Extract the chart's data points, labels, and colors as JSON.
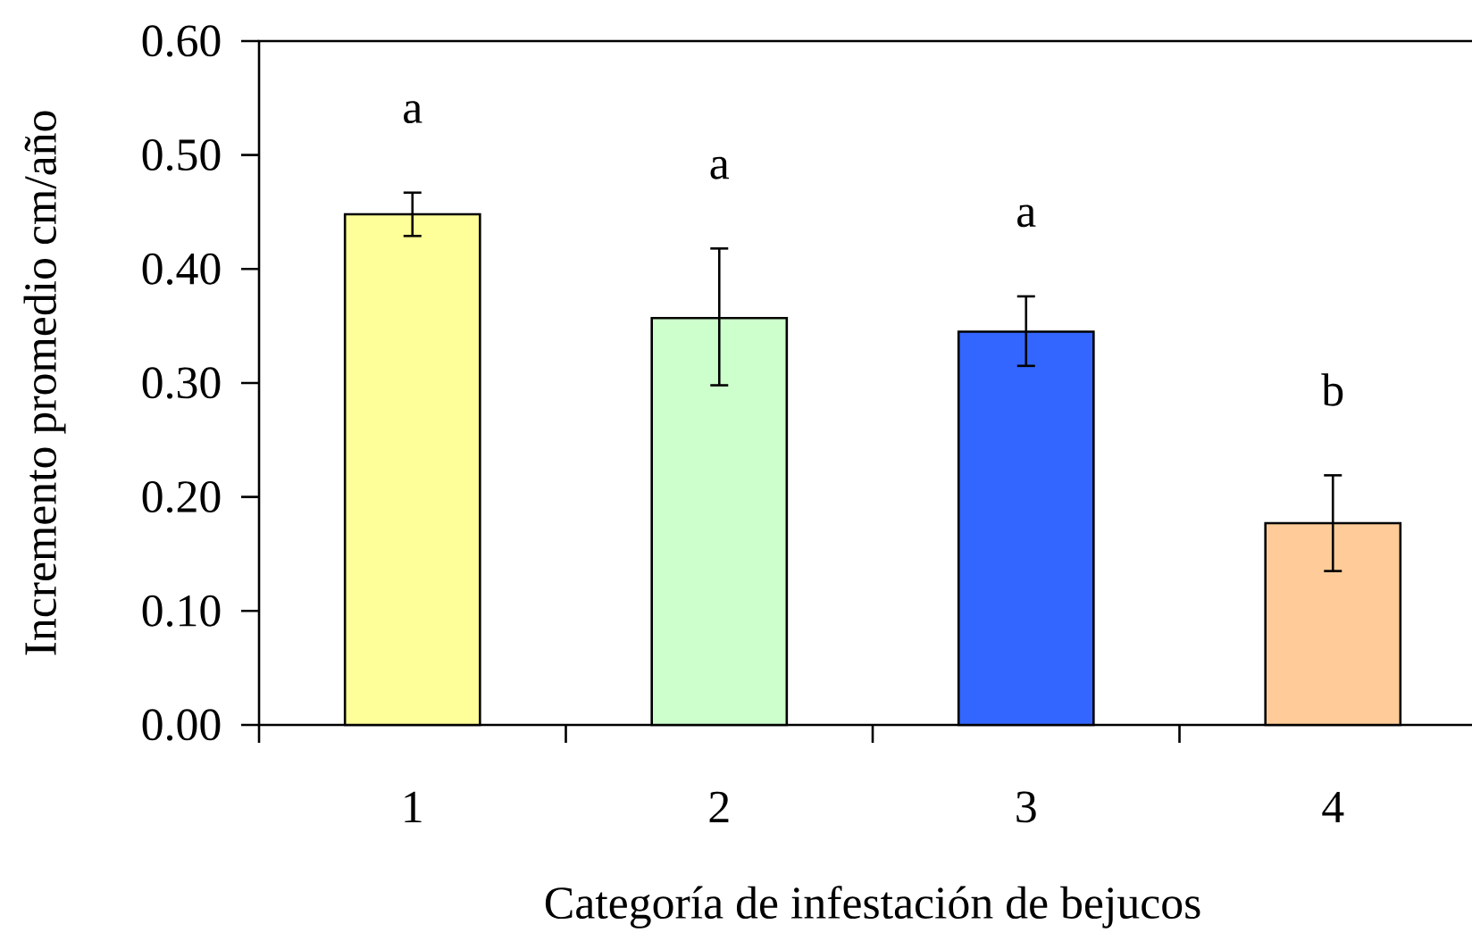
{
  "chart_data": {
    "type": "bar",
    "xlabel": "Categoría de infestación de bejucos",
    "ylabel": "Incremento promedio cm/año",
    "categories": [
      "1",
      "2",
      "3",
      "4"
    ],
    "values": [
      0.448,
      0.357,
      0.345,
      0.177
    ],
    "colors": [
      "#ffff99",
      "#ccffcc",
      "#3366ff",
      "#ffcc99"
    ],
    "errors": [
      [
        0.429,
        0.467
      ],
      [
        0.298,
        0.418
      ],
      [
        0.315,
        0.376
      ],
      [
        0.135,
        0.219
      ]
    ],
    "ylim": [
      0,
      0.6
    ],
    "yticks": [
      {
        "value": 0,
        "label": "0.00"
      },
      {
        "value": 0.1,
        "label": "0.10"
      },
      {
        "value": 0.2,
        "label": "0.20"
      },
      {
        "value": 0.3,
        "label": "0.30"
      },
      {
        "value": 0.4,
        "label": "0.40"
      },
      {
        "value": 0.5,
        "label": "0.50"
      },
      {
        "value": 0.6,
        "label": "0.60"
      }
    ],
    "annotations": [
      "a",
      "a",
      "a",
      "b"
    ]
  }
}
